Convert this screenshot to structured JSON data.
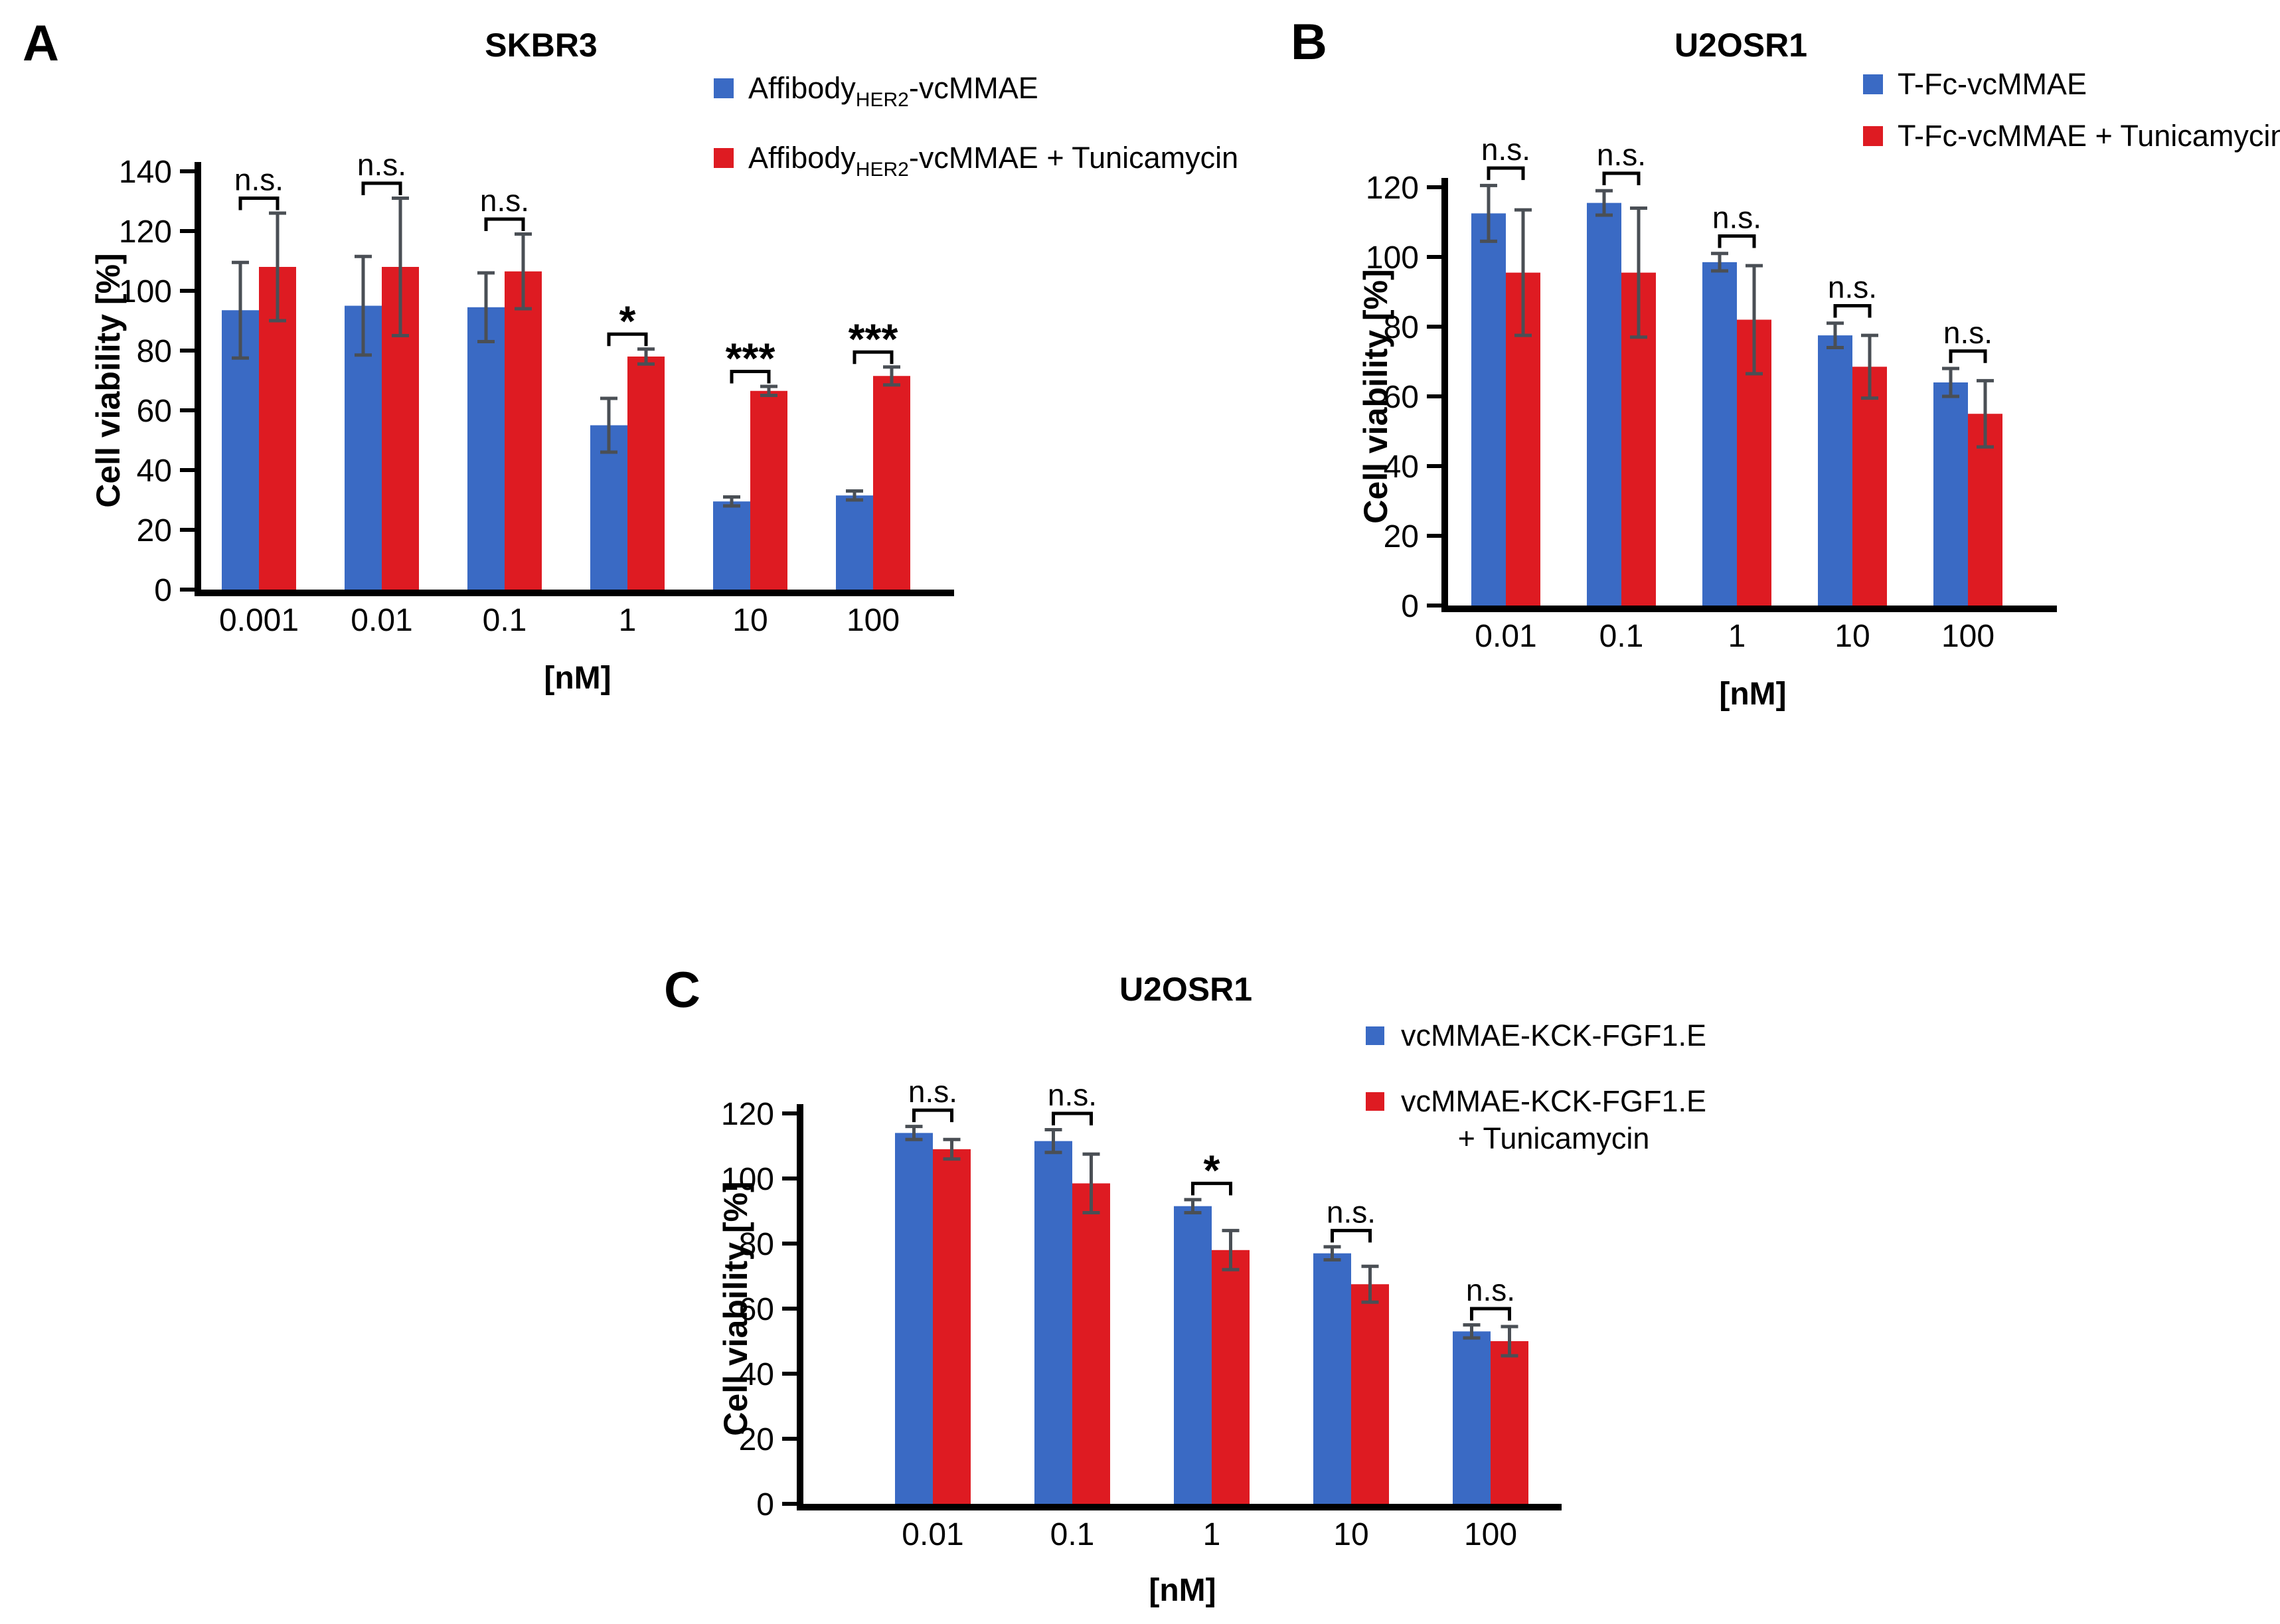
{
  "figure": {
    "background": "#FFFFFF",
    "colors": {
      "series_blue": "#3A6AC4",
      "series_red": "#DE1B22",
      "error_bar": "#4A4F55",
      "axis": "#000000"
    },
    "panels": [
      {
        "label": "A",
        "title": "SKBR3",
        "ylabel": "Cell viability [%]",
        "xlabel": "[nM]",
        "legend": [
          {
            "swatch": "series_blue",
            "lines": [
              [
                {
                  "text": "Affibody"
                },
                {
                  "text": "HER2",
                  "subscript": true
                },
                {
                  "text": "-vcMMAE"
                }
              ]
            ]
          },
          {
            "swatch": "series_red",
            "lines": [
              [
                {
                  "text": "Affibody"
                },
                {
                  "text": "HER2",
                  "subscript": true
                },
                {
                  "text": "-vcMMAE + Tunicamycin"
                }
              ]
            ]
          }
        ],
        "chart_data": {
          "type": "bar",
          "title": "SKBR3",
          "xlabel": "[nM]",
          "ylabel": "Cell viability [%]",
          "categories": [
            "0.001",
            "0.01",
            "0.1",
            "1",
            "10",
            "100"
          ],
          "ylim": [
            0,
            140
          ],
          "ytick_step": 20,
          "grid": false,
          "legend_position": "top-right",
          "series": [
            {
              "name": "Affibody(HER2)-vcMMAE",
              "color": "#3A6AC4",
              "values": [
                93.5,
                95,
                94.5,
                55,
                29.5,
                31.5
              ],
              "errors": [
                16,
                16.5,
                11.5,
                9,
                1.5,
                1.5
              ]
            },
            {
              "name": "Affibody(HER2)-vcMMAE + Tunicamycin",
              "color": "#DE1B22",
              "values": [
                108,
                108,
                106.5,
                78,
                66.5,
                71.5
              ],
              "errors": [
                18,
                23,
                12.5,
                2.5,
                1.5,
                3
              ]
            }
          ],
          "significance": [
            "n.s.",
            "n.s.",
            "n.s.",
            "*",
            "***",
            "***"
          ]
        }
      },
      {
        "label": "B",
        "title": "U2OSR1",
        "ylabel": "Cell viability [%]",
        "xlabel": "[nM]",
        "legend": [
          {
            "swatch": "series_blue",
            "lines": [
              [
                {
                  "text": "T-Fc-vcMMAE"
                }
              ]
            ]
          },
          {
            "swatch": "series_red",
            "lines": [
              [
                {
                  "text": "T-Fc-vcMMAE + Tunicamycin"
                }
              ]
            ]
          }
        ],
        "chart_data": {
          "type": "bar",
          "title": "U2OSR1",
          "xlabel": "[nM]",
          "ylabel": "Cell viability [%]",
          "categories": [
            "0.01",
            "0.1",
            "1",
            "10",
            "100"
          ],
          "ylim": [
            0,
            120
          ],
          "ytick_step": 20,
          "grid": false,
          "legend_position": "top-right",
          "series": [
            {
              "name": "T-Fc-vcMMAE",
              "color": "#3A6AC4",
              "values": [
                112.5,
                115.5,
                98.5,
                77.5,
                64
              ],
              "errors": [
                8,
                3.5,
                2.5,
                3.5,
                4
              ]
            },
            {
              "name": "T-Fc-vcMMAE + Tunicamycin",
              "color": "#DE1B22",
              "values": [
                95.5,
                95.5,
                82,
                68.5,
                55
              ],
              "errors": [
                18,
                18.5,
                15.5,
                9,
                9.5
              ]
            }
          ],
          "significance": [
            "n.s.",
            "n.s.",
            "n.s.",
            "n.s.",
            "n.s."
          ]
        }
      },
      {
        "label": "C",
        "title": "U2OSR1",
        "ylabel": "Cell viability [%]",
        "xlabel": "[nM]",
        "legend": [
          {
            "swatch": "series_blue",
            "lines": [
              [
                {
                  "text": "vcMMAE-KCK-FGF1.E"
                }
              ]
            ]
          },
          {
            "swatch": "series_red",
            "lines": [
              [
                {
                  "text": "vcMMAE-KCK-FGF1.E"
                }
              ],
              [
                {
                  "text": "+ Tunicamycin"
                }
              ]
            ]
          }
        ],
        "chart_data": {
          "type": "bar",
          "title": "U2OSR1",
          "xlabel": "[nM]",
          "ylabel": "Cell viability [%]",
          "categories": [
            "0.01",
            "0.1",
            "1",
            "10",
            "100"
          ],
          "ylim": [
            0,
            120
          ],
          "ytick_step": 20,
          "grid": false,
          "legend_position": "top-right",
          "series": [
            {
              "name": "vcMMAE-KCK-FGF1.E",
              "color": "#3A6AC4",
              "values": [
                114,
                111.5,
                91.5,
                77,
                53
              ],
              "errors": [
                2,
                3.5,
                2,
                2,
                2
              ]
            },
            {
              "name": "vcMMAE-KCK-FGF1.E + Tunicamycin",
              "color": "#DE1B22",
              "values": [
                109,
                98.5,
                78,
                67.5,
                50
              ],
              "errors": [
                3,
                9,
                6,
                5.5,
                4.5
              ]
            }
          ],
          "significance": [
            "n.s.",
            "n.s.",
            "*",
            "n.s.",
            "n.s."
          ]
        }
      }
    ]
  }
}
